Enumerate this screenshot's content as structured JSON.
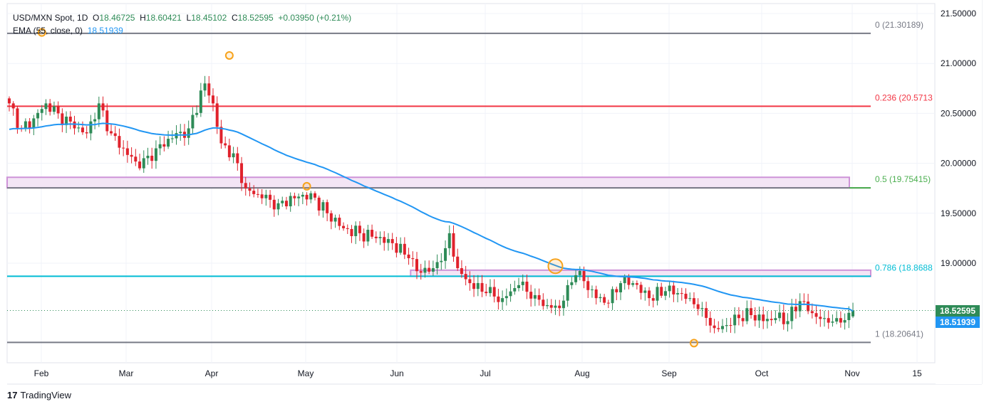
{
  "legend": {
    "symbol": "USD/MXN Spot, 1D",
    "o_label": "O",
    "o": "18.46725",
    "h_label": "H",
    "h": "18.60421",
    "l_label": "L",
    "l": "18.45102",
    "c_label": "C",
    "c": "18.52595",
    "change": "+0.03950 (+0.21%)",
    "ema_label": "EMA (55, close, 0)",
    "ema_value": "18.51939"
  },
  "branding": "TradingView",
  "colors": {
    "up": "#2e8b57",
    "down": "#e0222c",
    "ema": "#2196f3",
    "fib0": "#787b86",
    "fib236": "#f23645",
    "fib5": "#4caf50",
    "fib786": "#00bcd4",
    "fib1": "#787b86",
    "zone": "#ce93d8",
    "marker": "#f7a21b"
  },
  "chart_data": {
    "type": "candlestick",
    "title": "USD/MXN Spot, 1D",
    "ylim": [
      18.0,
      21.6
    ],
    "y_ticks": [
      "21.50000",
      "21.00000",
      "20.50000",
      "20.00000",
      "19.50000",
      "19.00000"
    ],
    "x_ticks": [
      "Feb",
      "Mar",
      "Apr",
      "May",
      "Jun",
      "Jul",
      "Aug",
      "Sep",
      "Oct",
      "Nov",
      "15"
    ],
    "close_anchors": [
      [
        0,
        20.6
      ],
      [
        3,
        20.35
      ],
      [
        6,
        20.45
      ],
      [
        9,
        20.6
      ],
      [
        12,
        20.5
      ],
      [
        16,
        20.35
      ],
      [
        19,
        20.3
      ],
      [
        22,
        20.6
      ],
      [
        25,
        20.3
      ],
      [
        28,
        20.15
      ],
      [
        32,
        19.95
      ],
      [
        36,
        20.15
      ],
      [
        40,
        20.25
      ],
      [
        44,
        20.35
      ],
      [
        48,
        20.8
      ],
      [
        50,
        20.6
      ],
      [
        52,
        20.2
      ],
      [
        55,
        20.1
      ],
      [
        58,
        19.75
      ],
      [
        62,
        19.65
      ],
      [
        66,
        19.6
      ],
      [
        70,
        19.65
      ],
      [
        74,
        19.7
      ],
      [
        78,
        19.5
      ],
      [
        82,
        19.35
      ],
      [
        86,
        19.3
      ],
      [
        90,
        19.25
      ],
      [
        94,
        19.2
      ],
      [
        98,
        19.05
      ],
      [
        100,
        18.92
      ],
      [
        104,
        18.95
      ],
      [
        107,
        19.15
      ],
      [
        108,
        19.3
      ],
      [
        110,
        18.95
      ],
      [
        113,
        18.8
      ],
      [
        117,
        18.7
      ],
      [
        121,
        18.65
      ],
      [
        125,
        18.78
      ],
      [
        129,
        18.68
      ],
      [
        132,
        18.58
      ],
      [
        135,
        18.55
      ],
      [
        137,
        18.78
      ],
      [
        139,
        18.88
      ],
      [
        141,
        18.82
      ],
      [
        144,
        18.65
      ],
      [
        147,
        18.6
      ],
      [
        150,
        18.8
      ],
      [
        153,
        18.8
      ],
      [
        157,
        18.65
      ],
      [
        161,
        18.72
      ],
      [
        164,
        18.7
      ],
      [
        167,
        18.65
      ],
      [
        170,
        18.55
      ],
      [
        173,
        18.35
      ],
      [
        176,
        18.38
      ],
      [
        179,
        18.45
      ],
      [
        182,
        18.48
      ],
      [
        185,
        18.42
      ],
      [
        188,
        18.45
      ],
      [
        191,
        18.42
      ],
      [
        194,
        18.62
      ],
      [
        197,
        18.5
      ],
      [
        200,
        18.45
      ],
      [
        203,
        18.45
      ],
      [
        205,
        18.43
      ],
      [
        207,
        18.526
      ]
    ],
    "ema_start": 20.33,
    "ema_period": 55,
    "last_price": "18.52595",
    "ema_last": "18.51939",
    "fib_levels": [
      {
        "ratio": "0",
        "price": 21.30189,
        "label": "0 (21.30189)",
        "color": "#787b86"
      },
      {
        "ratio": "0.236",
        "price": 20.5713,
        "label": "0.236 (20.5713",
        "color": "#f23645"
      },
      {
        "ratio": "0.5",
        "price": 19.75415,
        "label": "0.5 (19.75415)",
        "color": "#4caf50"
      },
      {
        "ratio": "0.786",
        "price": 18.86884,
        "label": "0.786 (18.8688",
        "color": "#00bcd4"
      },
      {
        "ratio": "1",
        "price": 18.20641,
        "label": "1 (18.20641)",
        "color": "#787b86"
      }
    ],
    "zones": [
      {
        "from": 19.75415,
        "to": 19.86,
        "start_day": 0
      },
      {
        "from": 18.86884,
        "to": 18.93,
        "start_day": 99
      }
    ],
    "markers": [
      {
        "day": 8,
        "price": 21.31
      },
      {
        "day": 54,
        "price": 21.08
      },
      {
        "day": 73,
        "price": 19.77
      },
      {
        "day": 134,
        "price": 18.97,
        "big": true
      },
      {
        "day": 168,
        "price": 18.2
      }
    ]
  }
}
